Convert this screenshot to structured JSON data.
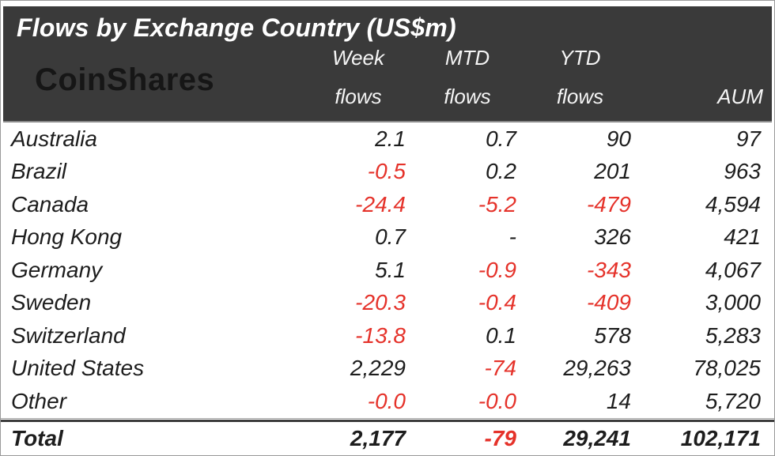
{
  "header": {
    "title": "Flows by Exchange Country (US$m)",
    "logo": "CoinShares"
  },
  "columns": [
    {
      "line1": "Week",
      "line2": "flows"
    },
    {
      "line1": "MTD",
      "line2": "flows"
    },
    {
      "line1": "YTD",
      "line2": "flows"
    },
    {
      "line1": "",
      "line2": "AUM"
    }
  ],
  "rows": [
    {
      "country": "Australia",
      "week": "2.1",
      "mtd": "0.7",
      "ytd": "90",
      "aum": "97"
    },
    {
      "country": "Brazil",
      "week": "-0.5",
      "mtd": "0.2",
      "ytd": "201",
      "aum": "963"
    },
    {
      "country": "Canada",
      "week": "-24.4",
      "mtd": "-5.2",
      "ytd": "-479",
      "aum": "4,594"
    },
    {
      "country": "Hong Kong",
      "week": "0.7",
      "mtd": "-",
      "ytd": "326",
      "aum": "421"
    },
    {
      "country": "Germany",
      "week": "5.1",
      "mtd": "-0.9",
      "ytd": "-343",
      "aum": "4,067"
    },
    {
      "country": "Sweden",
      "week": "-20.3",
      "mtd": "-0.4",
      "ytd": "-409",
      "aum": "3,000"
    },
    {
      "country": "Switzerland",
      "week": "-13.8",
      "mtd": "0.1",
      "ytd": "578",
      "aum": "5,283"
    },
    {
      "country": "United States",
      "week": "2,229",
      "mtd": "-74",
      "ytd": "29,263",
      "aum": "78,025"
    },
    {
      "country": "Other",
      "week": "-0.0",
      "mtd": "-0.0",
      "ytd": "14",
      "aum": "5,720"
    }
  ],
  "total": {
    "label": "Total",
    "week": "2,177",
    "mtd": "-79",
    "ytd": "29,241",
    "aum": "102,171"
  },
  "colors": {
    "negative": "#e5322a",
    "header_bg": "#3a3a3a"
  }
}
